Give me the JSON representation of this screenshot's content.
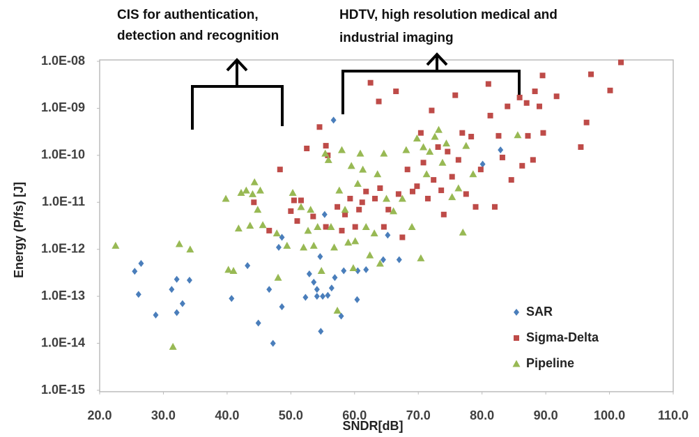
{
  "chart_data": {
    "type": "scatter",
    "annotations": [
      "CIS for authentication,",
      "detection and recognition",
      "HDTV, high resolution medical and",
      "industrial imaging"
    ],
    "x_label": "SNDR[dB]",
    "y_label": "Energy   (P/fs)  [J]",
    "log_y": true,
    "grid": false,
    "legend": "lower right",
    "xlim": [
      20,
      110
    ],
    "xticks": [
      {
        "value": 20,
        "label": "20.0"
      },
      {
        "value": 30,
        "label": "30.0"
      },
      {
        "value": 40,
        "label": "40.0"
      },
      {
        "value": 50,
        "label": "50.0"
      },
      {
        "value": 60,
        "label": "60.0"
      },
      {
        "value": 70,
        "label": "70.0"
      },
      {
        "value": 80,
        "label": "80.0"
      },
      {
        "value": 90,
        "label": "90.0"
      },
      {
        "value": 100,
        "label": "100.0"
      },
      {
        "value": 110,
        "label": "110.0"
      }
    ],
    "ylim": [
      1e-15,
      1e-08
    ],
    "yticks": [
      {
        "value": 1e-08,
        "label": "1.0E-08"
      },
      {
        "value": 1e-09,
        "label": "1.0E-09"
      },
      {
        "value": 1e-10,
        "label": "1.0E-10"
      },
      {
        "value": 1e-11,
        "label": "1.0E-11"
      },
      {
        "value": 1e-12,
        "label": "1.0E-12"
      },
      {
        "value": 1e-13,
        "label": "1.0E-13"
      },
      {
        "value": 1e-14,
        "label": "1.0E-14"
      },
      {
        "value": 1e-15,
        "label": "1.0E-15"
      }
    ],
    "series": [
      {
        "name": "SAR",
        "color": "#4a7ebb",
        "marker": "diamond",
        "x": [
          25.5,
          26.5,
          26.1,
          28.8,
          31.3,
          32.1,
          32.1,
          33.0,
          34.1,
          40.7,
          43.2,
          44.9,
          46.6,
          47.2,
          48.1,
          48.6,
          48.6,
          52.3,
          52.9,
          53.6,
          54.1,
          54.1,
          54.6,
          54.7,
          55.0,
          55.8,
          56.4,
          56.9,
          55.3,
          56.7,
          57.9,
          58.3,
          60.4,
          60.5,
          61.8,
          64.5,
          65.2,
          67.0,
          82.9,
          80.1
        ],
        "values": [
          3.4e-13,
          5e-13,
          1.1e-13,
          4e-14,
          1.4e-13,
          2.3e-13,
          4.5e-14,
          7e-14,
          2.2e-13,
          9e-14,
          4.5e-13,
          2.7e-14,
          1.4e-13,
          1e-14,
          1.1e-12,
          6e-14,
          1.8e-12,
          9.5e-14,
          3e-13,
          2e-13,
          1.4e-13,
          1e-13,
          7e-13,
          1.8e-14,
          1e-13,
          1.05e-13,
          1.5e-13,
          2.5e-13,
          5.5e-12,
          5.6e-10,
          3.8e-14,
          3.5e-13,
          8.5e-14,
          3.5e-13,
          3.7e-13,
          6e-13,
          2e-12,
          6e-13,
          1.3e-10,
          6.5e-11
        ]
      },
      {
        "name": "Sigma-Delta",
        "color": "#be4b48",
        "marker": "square",
        "x": [
          44.2,
          46.6,
          48.3,
          50.0,
          50.5,
          51.6,
          51.0,
          52.5,
          54.5,
          55.5,
          55.8,
          53.5,
          55.5,
          57.3,
          58.0,
          58.5,
          59.3,
          60.1,
          60.7,
          61.2,
          61.8,
          62.5,
          63.2,
          63.8,
          64.0,
          64.6,
          65.3,
          66.5,
          66.9,
          67.5,
          68.3,
          69.1,
          69.8,
          70.4,
          70.8,
          71.5,
          72.1,
          72.4,
          73.1,
          73.6,
          74.0,
          74.6,
          75.3,
          75.8,
          76.3,
          76.9,
          77.5,
          78.3,
          79.0,
          79.8,
          81.0,
          81.3,
          82.0,
          82.6,
          83.2,
          84.0,
          84.6,
          85.9,
          86.3,
          87.0,
          88.3,
          89.0,
          89.5,
          89.6,
          91.7,
          95.5,
          96.4,
          97.1,
          100.1,
          101.8,
          87.2,
          88.0
        ],
        "values": [
          1e-11,
          2.5e-12,
          5e-11,
          6.5e-12,
          1.1e-11,
          1.1e-11,
          4e-12,
          1.4e-10,
          4e-10,
          1.6e-10,
          1e-10,
          5e-12,
          3e-12,
          8e-12,
          2.5e-12,
          5.5e-12,
          1.2e-11,
          3e-12,
          7e-12,
          1e-11,
          1.7e-11,
          3.5e-09,
          1.2e-11,
          1.4e-09,
          2e-11,
          3e-12,
          7e-12,
          2.3e-09,
          1.5e-11,
          1.8e-12,
          5e-11,
          1.7e-11,
          2.2e-11,
          3e-10,
          7e-11,
          1.2e-11,
          9e-10,
          3e-11,
          1.5e-10,
          1.8e-11,
          5.5e-12,
          1.2e-10,
          3.5e-11,
          1.9e-09,
          8e-11,
          3e-10,
          1.5e-11,
          2.5e-10,
          8e-12,
          5e-11,
          3.3e-09,
          7e-10,
          8e-12,
          2.6e-10,
          9e-11,
          1.1e-09,
          3e-11,
          1.7e-09,
          6e-11,
          1.3e-09,
          2.3e-09,
          1.1e-09,
          5e-09,
          3e-10,
          1.8e-09,
          1.5e-10,
          5e-10,
          5.3e-09,
          2.4e-09,
          9.5e-09,
          2.6e-10,
          8e-11
        ]
      },
      {
        "name": "Pipeline",
        "color": "#98b954",
        "marker": "triangle",
        "x": [
          22.5,
          32.5,
          34.2,
          31.5,
          39.8,
          40.2,
          41.0,
          41.8,
          42.2,
          43.0,
          43.6,
          44.0,
          44.3,
          44.8,
          45.2,
          45.6,
          47.8,
          48.0,
          49.4,
          50.3,
          51.6,
          52.0,
          52.7,
          53.1,
          53.6,
          54.2,
          54.8,
          55.4,
          55.9,
          56.3,
          56.8,
          57.3,
          57.6,
          58.0,
          58.5,
          59.0,
          59.5,
          59.8,
          60.1,
          60.5,
          60.9,
          61.3,
          61.8,
          62.4,
          63.1,
          63.6,
          64.0,
          64.6,
          65.0,
          66.1,
          67.5,
          68.1,
          69.0,
          69.8,
          70.4,
          70.8,
          71.3,
          71.8,
          72.6,
          73.2,
          73.8,
          74.4,
          75.3,
          76.3,
          77.0,
          77.5,
          78.6,
          85.6
        ],
        "values": [
          1.2e-12,
          1.3e-12,
          1e-12,
          8.5e-15,
          1.2e-11,
          3.7e-13,
          3.5e-13,
          2.8e-12,
          1.6e-11,
          1.8e-11,
          3.2e-12,
          1.5e-11,
          2.7e-11,
          7e-12,
          1.8e-11,
          3.3e-12,
          2.2e-12,
          2.5e-13,
          1.2e-12,
          1.6e-11,
          8e-12,
          1.1e-12,
          2.5e-12,
          7e-12,
          1.2e-12,
          3e-12,
          3.5e-13,
          1.1e-10,
          8e-11,
          3e-12,
          1.1e-12,
          5e-14,
          1.8e-11,
          1.3e-10,
          7e-12,
          1.4e-12,
          6e-11,
          4e-13,
          1.5e-12,
          2.5e-11,
          1.1e-10,
          5e-11,
          3e-12,
          7.5e-13,
          2.2e-12,
          4e-11,
          5e-13,
          1.1e-10,
          1.2e-11,
          6.5e-12,
          1.2e-11,
          1.3e-10,
          3e-12,
          2.3e-10,
          6.5e-13,
          1.5e-10,
          4e-11,
          1.2e-10,
          2.5e-10,
          3.5e-10,
          7e-11,
          1.8e-10,
          1.3e-11,
          2e-11,
          2.3e-12,
          1.6e-10,
          4e-11,
          2.7e-10
        ]
      }
    ]
  }
}
